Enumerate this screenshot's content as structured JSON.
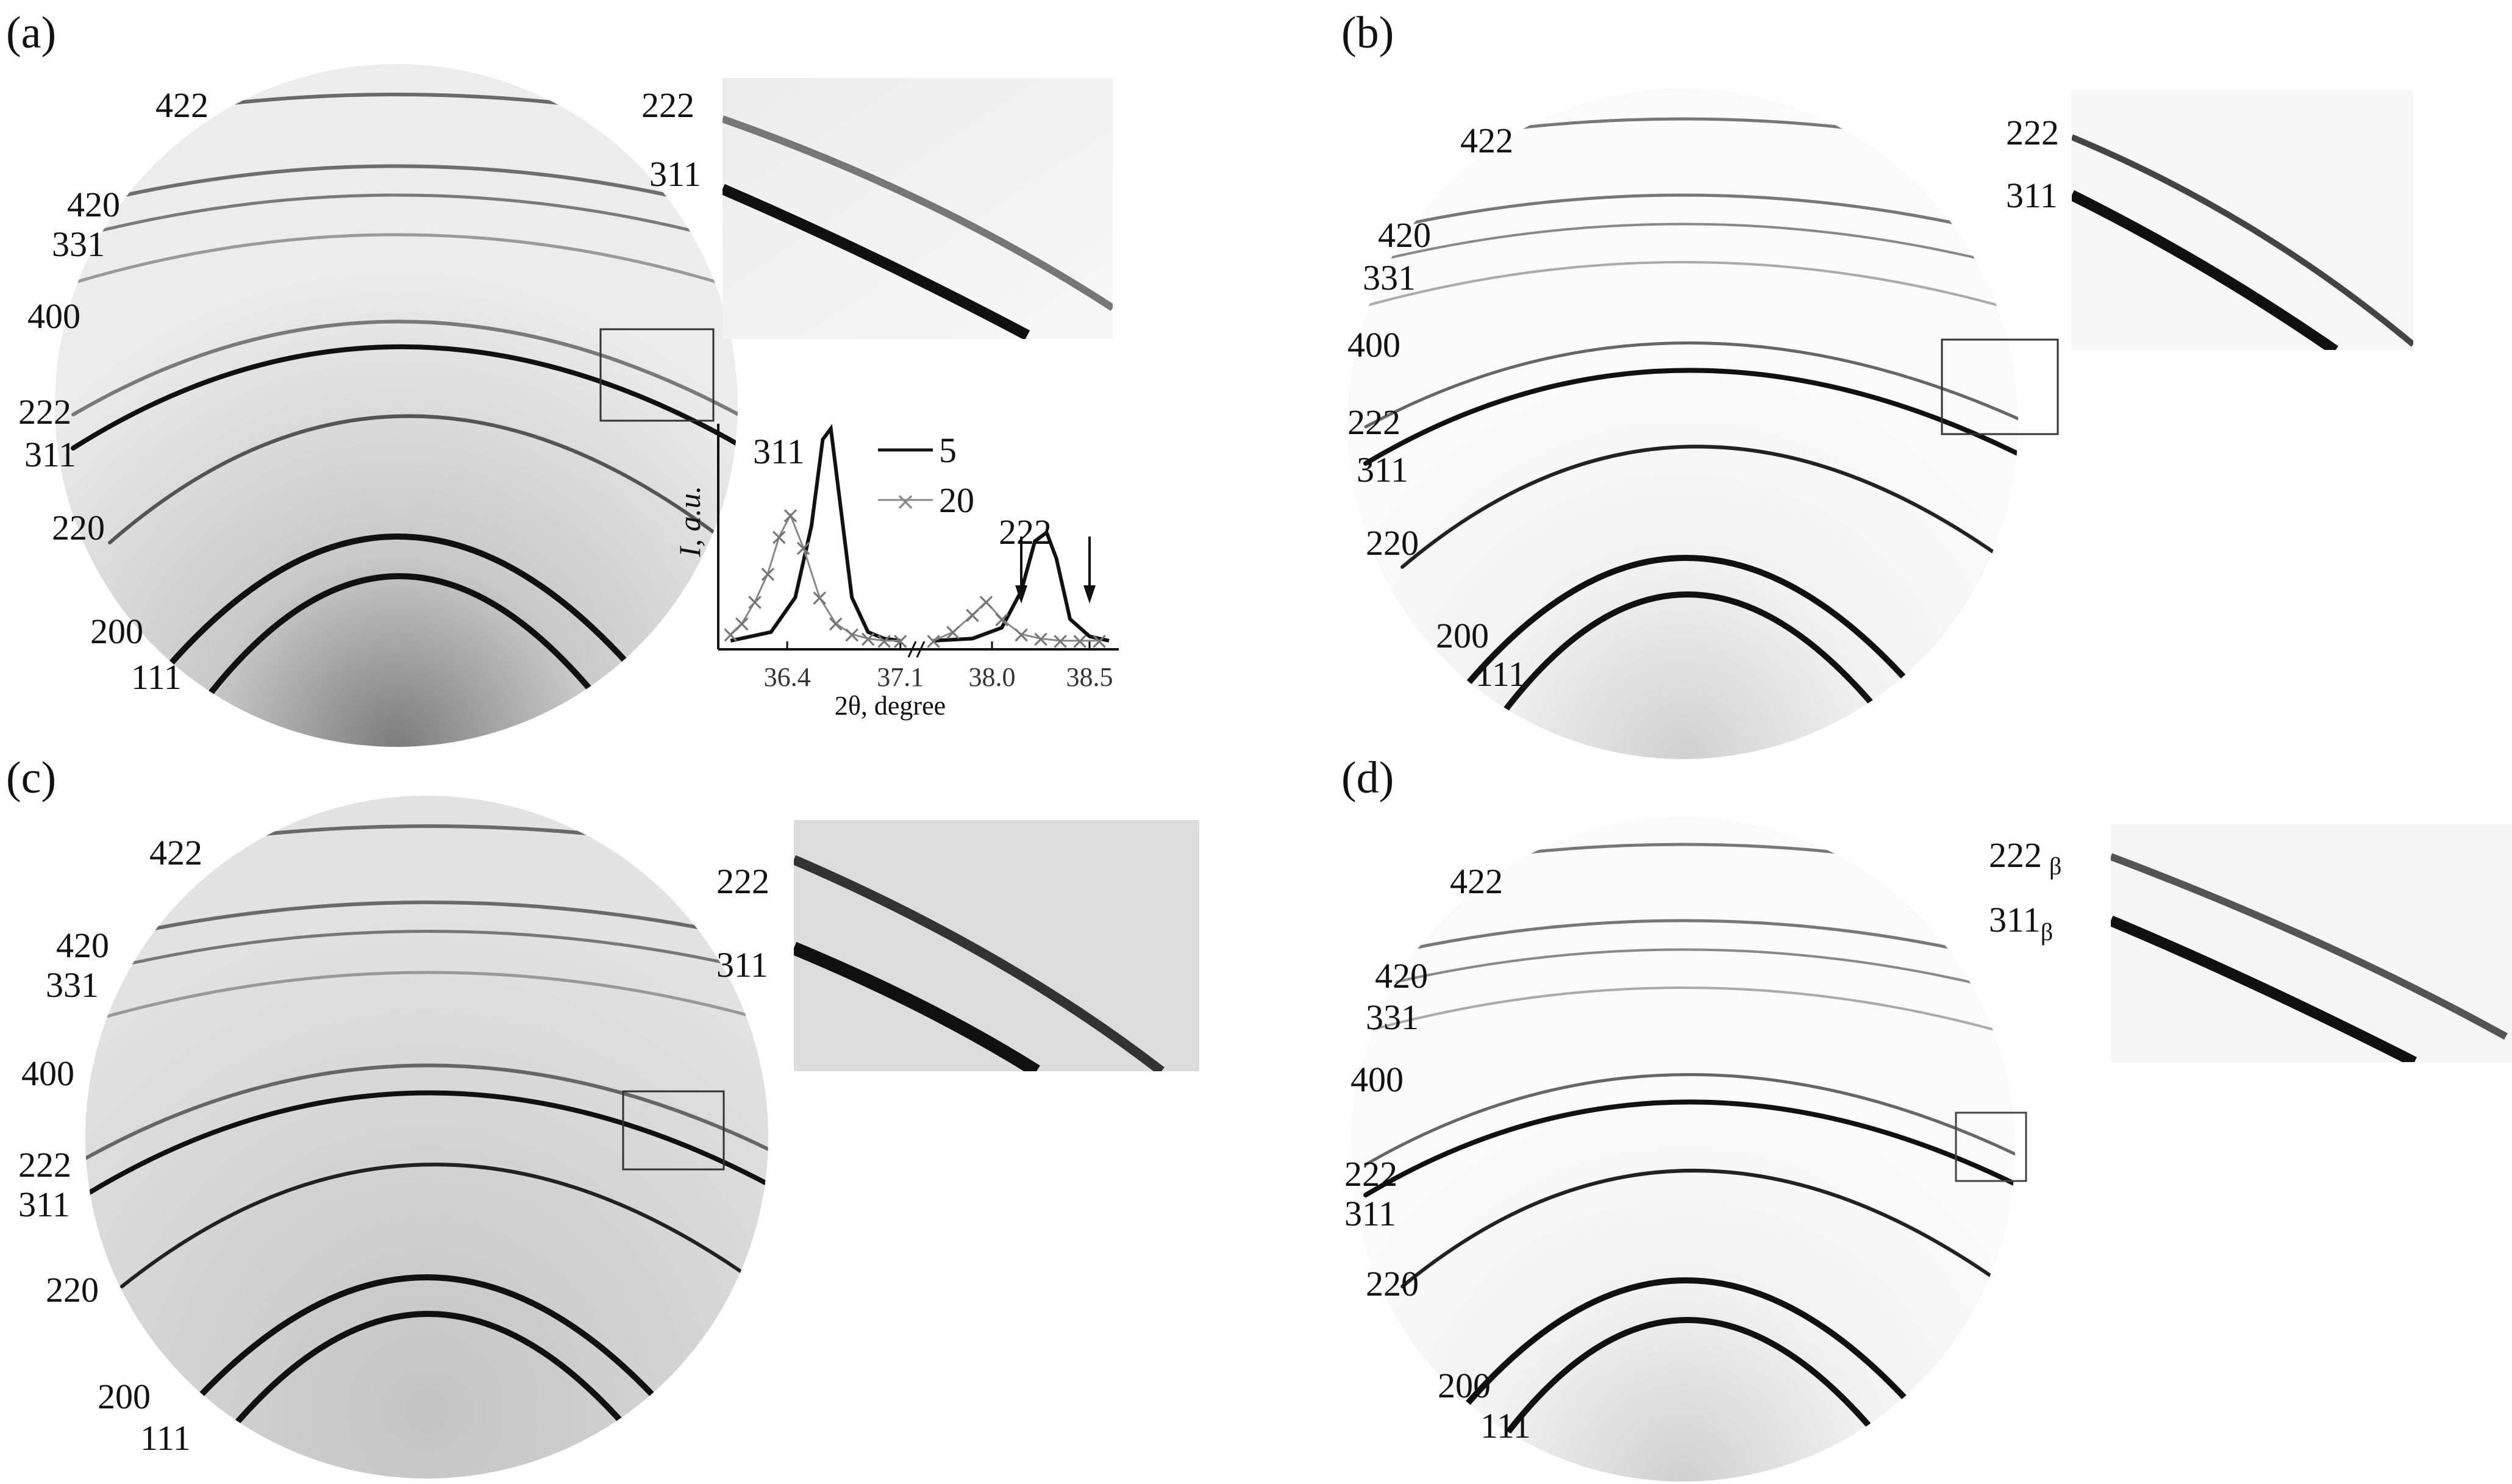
{
  "panels": [
    {
      "label": "(a)",
      "rings": [
        "422",
        "420",
        "331",
        "400",
        "222",
        "311",
        "220",
        "200",
        "111"
      ],
      "inset_labels": [
        "222",
        "311"
      ]
    },
    {
      "label": "(b)",
      "rings": [
        "422",
        "420",
        "331",
        "400",
        "222",
        "311",
        "220",
        "200",
        "111"
      ],
      "inset_labels": [
        "222",
        "311"
      ]
    },
    {
      "label": "(c)",
      "rings": [
        "422",
        "420",
        "331",
        "400",
        "222",
        "311",
        "220",
        "200",
        "111"
      ],
      "inset_labels": [
        "222",
        "311"
      ]
    },
    {
      "label": "(d)",
      "rings": [
        "422",
        "420",
        "331",
        "400",
        "222",
        "311",
        "220",
        "200",
        "111"
      ],
      "inset_labels": [
        "222",
        "311"
      ],
      "inset_subscript": "β"
    }
  ],
  "chart_data": {
    "type": "line",
    "ylabel": "I, a.u.",
    "xlabel": "2θ, degree",
    "x_ticks": [
      "36.4",
      "37.1",
      "38.0",
      "38.5"
    ],
    "peak_labels": [
      "311",
      "222"
    ],
    "series": [
      {
        "name": "5",
        "x": [
          36.05,
          36.3,
          36.45,
          36.55,
          36.62,
          36.67,
          36.72,
          36.8,
          36.9,
          37.0,
          37.1,
          37.7,
          37.9,
          38.05,
          38.15,
          38.22,
          38.28,
          38.33,
          38.4,
          38.5,
          38.6
        ],
        "y": [
          0.02,
          0.06,
          0.22,
          0.55,
          0.95,
          1.0,
          0.7,
          0.22,
          0.06,
          0.03,
          0.02,
          0.02,
          0.03,
          0.08,
          0.25,
          0.48,
          0.52,
          0.4,
          0.12,
          0.04,
          0.02
        ]
      },
      {
        "name": "20",
        "x": [
          36.05,
          36.12,
          36.2,
          36.28,
          36.35,
          36.42,
          36.5,
          36.6,
          36.7,
          36.8,
          36.9,
          37.0,
          37.1,
          37.7,
          37.8,
          37.9,
          37.97,
          38.05,
          38.15,
          38.25,
          38.35,
          38.45,
          38.55
        ],
        "y": [
          0.05,
          0.1,
          0.2,
          0.33,
          0.5,
          0.6,
          0.45,
          0.22,
          0.1,
          0.05,
          0.03,
          0.02,
          0.02,
          0.02,
          0.06,
          0.14,
          0.2,
          0.12,
          0.05,
          0.03,
          0.02,
          0.02,
          0.02
        ]
      }
    ],
    "arrows_at": [
      38.15,
      38.5
    ]
  }
}
